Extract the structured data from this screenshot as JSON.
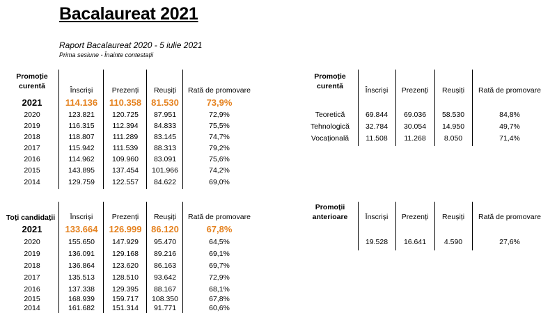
{
  "title": "Bacalaureat 2021",
  "subtitle": "Raport Bacalaureat 2020 - 5 iulie 2021",
  "note": "Prima sesiune - Înainte contestații",
  "tables": {
    "current": {
      "label_line1": "Promoție",
      "label_line2": "curentă",
      "columns": [
        "Înscriși",
        "Prezenți",
        "Reușiți",
        "Rată de promovare"
      ],
      "highlight": {
        "year": "2021",
        "enrolled": "114.136",
        "present": "110.358",
        "passed": "81.530",
        "rate": "73,9%"
      },
      "rows": [
        {
          "year": "2020",
          "enrolled": "123.821",
          "present": "120.725",
          "passed": "87.951",
          "rate": "72,9%"
        },
        {
          "year": "2019",
          "enrolled": "116.315",
          "present": "112.394",
          "passed": "84.833",
          "rate": "75,5%"
        },
        {
          "year": "2018",
          "enrolled": "118.807",
          "present": "111.289",
          "passed": "83.145",
          "rate": "74,7%"
        },
        {
          "year": "2017",
          "enrolled": "115.942",
          "present": "111.539",
          "passed": "88.313",
          "rate": "79,2%"
        },
        {
          "year": "2016",
          "enrolled": "114.962",
          "present": "109.960",
          "passed": "83.091",
          "rate": "75,6%"
        },
        {
          "year": "2015",
          "enrolled": "143.895",
          "present": "137.454",
          "passed": "101.966",
          "rate": "74,2%"
        },
        {
          "year": "2014",
          "enrolled": "129.759",
          "present": "122.557",
          "passed": "84.622",
          "rate": "69,0%"
        }
      ]
    },
    "all": {
      "label": "Toți candidații",
      "columns": [
        "Înscriși",
        "Prezenți",
        "Reușiți",
        "Rată de promovare"
      ],
      "highlight": {
        "year": "2021",
        "enrolled": "133.664",
        "present": "126.999",
        "passed": "86.120",
        "rate": "67,8%"
      },
      "rows": [
        {
          "year": "2020",
          "enrolled": "155.650",
          "present": "147.929",
          "passed": "95.470",
          "rate": "64,5%"
        },
        {
          "year": "2019",
          "enrolled": "136.091",
          "present": "129.168",
          "passed": "89.216",
          "rate": "69,1%"
        },
        {
          "year": "2018",
          "enrolled": "136.864",
          "present": "123.620",
          "passed": "86.163",
          "rate": "69,7%"
        },
        {
          "year": "2017",
          "enrolled": "135.513",
          "present": "128.510",
          "passed": "93.642",
          "rate": "72,9%"
        },
        {
          "year": "2016",
          "enrolled": "137.338",
          "present": "129.395",
          "passed": "88.167",
          "rate": "68,1%"
        },
        {
          "year": "2015",
          "enrolled": "168.939",
          "present": "159.717",
          "passed": "108.350",
          "rate": "67,8%"
        },
        {
          "year": "2014",
          "enrolled": "161.682",
          "present": "151.314",
          "passed": "91.771",
          "rate": "60,6%"
        }
      ]
    },
    "by_type": {
      "label_line1": "Promoție",
      "label_line2": "curentă",
      "columns": [
        "Înscriși",
        "Prezenți",
        "Reușiți",
        "Rată de promovare"
      ],
      "rows": [
        {
          "type": "Teoretică",
          "enrolled": "69.844",
          "present": "69.036",
          "passed": "58.530",
          "rate": "84,8%"
        },
        {
          "type": "Tehnologică",
          "enrolled": "32.784",
          "present": "30.054",
          "passed": "14.950",
          "rate": "49,7%"
        },
        {
          "type": "Vocațională",
          "enrolled": "11.508",
          "present": "11.268",
          "passed": "8.050",
          "rate": "71,4%"
        }
      ]
    },
    "previous": {
      "label_line1": "Promoții",
      "label_line2": "anterioare",
      "columns": [
        "Înscriși",
        "Prezenți",
        "Reușiți",
        "Rată de promovare"
      ],
      "row": {
        "enrolled": "19.528",
        "present": "16.641",
        "passed": "4.590",
        "rate": "27,6%"
      }
    }
  }
}
